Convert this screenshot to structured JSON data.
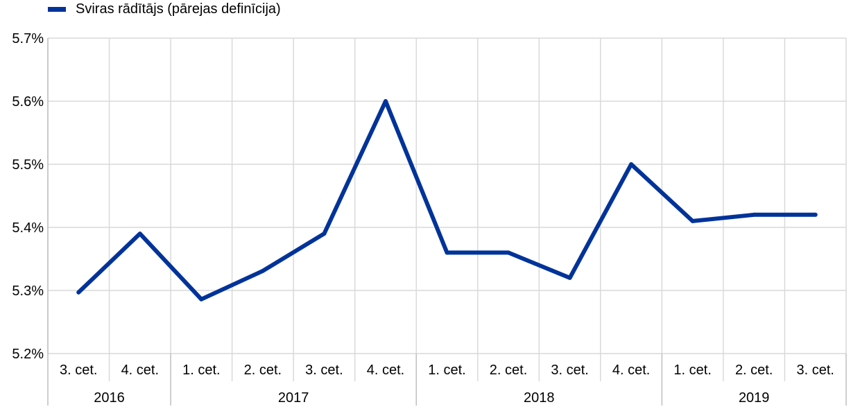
{
  "chart_data": {
    "type": "line",
    "title": "",
    "xlabel": "",
    "ylabel": "",
    "categories": [
      "3. cet.",
      "4. cet.",
      "1. cet.",
      "2. cet.",
      "3. cet.",
      "4. cet.",
      "1. cet.",
      "2. cet.",
      "3. cet.",
      "4. cet.",
      "1. cet.",
      "2. cet.",
      "3. cet."
    ],
    "groups": [
      {
        "label": "2016",
        "count": 2
      },
      {
        "label": "2017",
        "count": 4
      },
      {
        "label": "2018",
        "count": 4
      },
      {
        "label": "2019",
        "count": 3
      }
    ],
    "series": [
      {
        "name": "Sviras rādītājs (pārejas definīcija)",
        "color": "#003399",
        "values": [
          5.297,
          5.39,
          5.286,
          5.331,
          5.39,
          5.6,
          5.36,
          5.36,
          5.32,
          5.5,
          5.41,
          5.42,
          5.42
        ]
      }
    ],
    "ylim": [
      5.2,
      5.7
    ],
    "yticks": [
      5.2,
      5.3,
      5.4,
      5.5,
      5.6,
      5.7
    ],
    "ytick_labels": [
      "5.2%",
      "5.3%",
      "5.4%",
      "5.5%",
      "5.6%",
      "5.7%"
    ],
    "grid": true,
    "legend_position": "top-left"
  }
}
